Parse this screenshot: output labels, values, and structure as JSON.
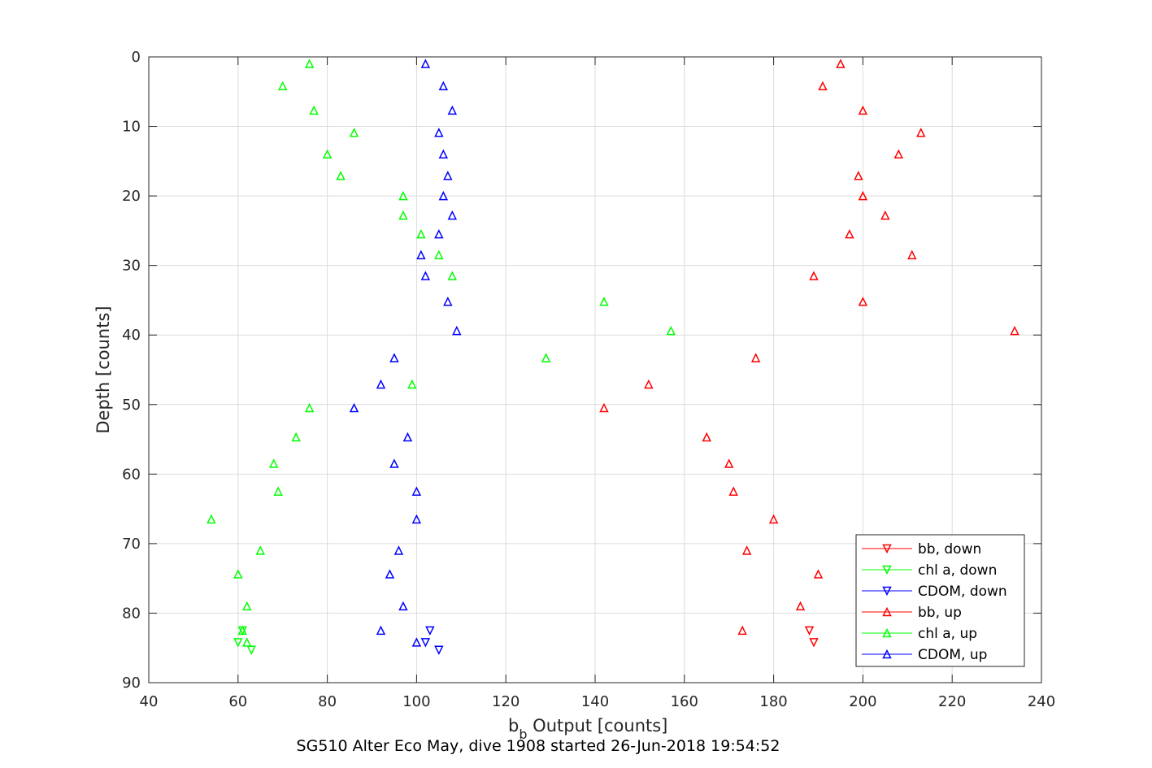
{
  "chart_data": {
    "type": "scatter",
    "title": "",
    "caption": "SG510 Alter Eco May, dive 1908 started 26-Jun-2018 19:54:52",
    "xlabel_main": "b",
    "xlabel_sub": "b",
    "xlabel_rest": " Output [counts]",
    "ylabel": "Depth [counts]",
    "xlim": [
      40,
      240
    ],
    "ylim": [
      0,
      90
    ],
    "y_reversed": true,
    "xticks": [
      40,
      60,
      80,
      100,
      120,
      140,
      160,
      180,
      200,
      220,
      240
    ],
    "yticks": [
      0,
      10,
      20,
      30,
      40,
      50,
      60,
      70,
      80,
      90
    ],
    "grid": true,
    "legend_position": "bottom-right",
    "series": [
      {
        "name": "bb, down",
        "color": "#ff0000",
        "marker": "triangle-down",
        "points": [
          [
            188,
            82.5
          ],
          [
            189,
            84.2
          ]
        ]
      },
      {
        "name": "chl a, down",
        "color": "#00ff00",
        "marker": "triangle-down",
        "points": [
          [
            61,
            82.5
          ],
          [
            60,
            84.2
          ],
          [
            63,
            85.3
          ]
        ]
      },
      {
        "name": "CDOM, down",
        "color": "#0000ff",
        "marker": "triangle-down",
        "points": [
          [
            103,
            82.5
          ],
          [
            102,
            84.2
          ],
          [
            105,
            85.3
          ]
        ]
      },
      {
        "name": "bb, up",
        "color": "#ff0000",
        "marker": "triangle-up",
        "points": [
          [
            195,
            1
          ],
          [
            191,
            4.2
          ],
          [
            200,
            7.7
          ],
          [
            213,
            10.9
          ],
          [
            208,
            14
          ],
          [
            199,
            17.1
          ],
          [
            200,
            20
          ],
          [
            205,
            22.8
          ],
          [
            197,
            25.5
          ],
          [
            211,
            28.5
          ],
          [
            189,
            31.5
          ],
          [
            200,
            35.2
          ],
          [
            234,
            39.4
          ],
          [
            176,
            43.3
          ],
          [
            152,
            47.1
          ],
          [
            142,
            50.5
          ],
          [
            165,
            54.7
          ],
          [
            170,
            58.5
          ],
          [
            171,
            62.5
          ],
          [
            180,
            66.5
          ],
          [
            174,
            71
          ],
          [
            190,
            74.4
          ],
          [
            186,
            79
          ],
          [
            173,
            82.5
          ]
        ]
      },
      {
        "name": "chl a, up",
        "color": "#00ff00",
        "marker": "triangle-up",
        "points": [
          [
            76,
            1
          ],
          [
            70,
            4.2
          ],
          [
            77,
            7.7
          ],
          [
            86,
            10.9
          ],
          [
            80,
            14
          ],
          [
            83,
            17.1
          ],
          [
            97,
            20
          ],
          [
            97,
            22.8
          ],
          [
            101,
            25.5
          ],
          [
            105,
            28.5
          ],
          [
            108,
            31.5
          ],
          [
            142,
            35.2
          ],
          [
            157,
            39.4
          ],
          [
            129,
            43.3
          ],
          [
            99,
            47.1
          ],
          [
            76,
            50.5
          ],
          [
            73,
            54.7
          ],
          [
            68,
            58.5
          ],
          [
            69,
            62.5
          ],
          [
            54,
            66.5
          ],
          [
            65,
            71
          ],
          [
            60,
            74.4
          ],
          [
            62,
            79
          ],
          [
            61,
            82.5
          ],
          [
            62,
            84.2
          ]
        ]
      },
      {
        "name": "CDOM, up",
        "color": "#0000ff",
        "marker": "triangle-up",
        "points": [
          [
            102,
            1
          ],
          [
            106,
            4.2
          ],
          [
            108,
            7.7
          ],
          [
            105,
            10.9
          ],
          [
            106,
            14
          ],
          [
            107,
            17.1
          ],
          [
            106,
            20
          ],
          [
            108,
            22.8
          ],
          [
            105,
            25.5
          ],
          [
            101,
            28.5
          ],
          [
            102,
            31.5
          ],
          [
            107,
            35.2
          ],
          [
            109,
            39.4
          ],
          [
            95,
            43.3
          ],
          [
            92,
            47.1
          ],
          [
            86,
            50.5
          ],
          [
            98,
            54.7
          ],
          [
            95,
            58.5
          ],
          [
            100,
            62.5
          ],
          [
            100,
            66.5
          ],
          [
            96,
            71
          ],
          [
            94,
            74.4
          ],
          [
            97,
            79
          ],
          [
            92,
            82.5
          ],
          [
            100,
            84.2
          ]
        ]
      }
    ]
  }
}
